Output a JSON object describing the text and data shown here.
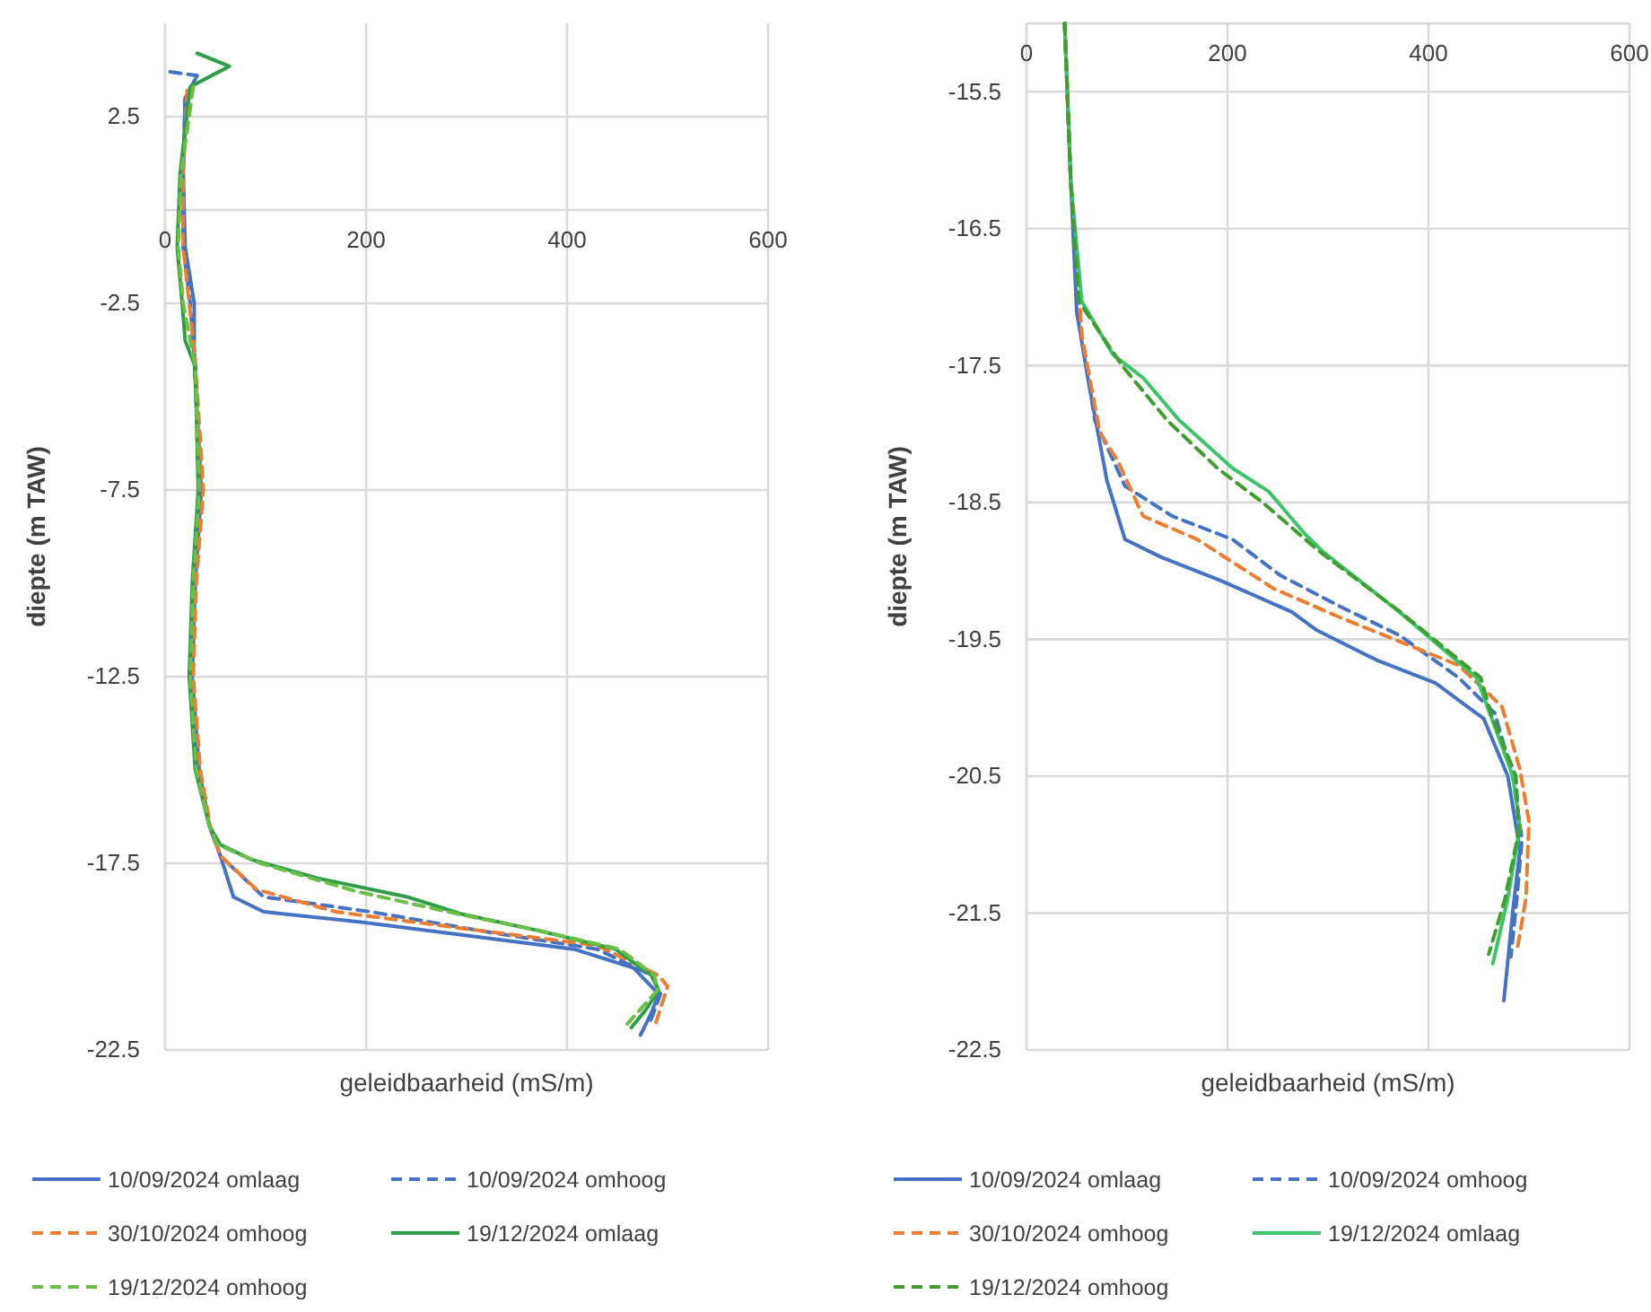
{
  "chart_data": [
    {
      "type": "line",
      "xlabel": "geleidbaarheid (mS/m)",
      "ylabel": "diepte (m TAW)",
      "xlim": [
        0,
        600
      ],
      "xticks": [
        0,
        200,
        400,
        600
      ],
      "ylim": [
        -22.5,
        5
      ],
      "yticks": [
        -22.5,
        -17.5,
        -12.5,
        -7.5,
        -2.5,
        2.5
      ],
      "grid": true,
      "legend": "bottom",
      "series": [
        {
          "name": "10/09/2024 omlaag",
          "color": "#4472c4",
          "line_style": "solid",
          "x": [
            30,
            20,
            18,
            20,
            29,
            29,
            35,
            29,
            26,
            33,
            44,
            55,
            68,
            98,
            193,
            290,
            407,
            466,
            491,
            484,
            473
          ],
          "values": [
            3.5,
            3,
            1,
            -1,
            -2.5,
            -4,
            -7.5,
            -10,
            -12.5,
            -15,
            -16.5,
            -17.3,
            -18.4,
            -18.8,
            -19.07,
            -19.4,
            -19.8,
            -20.3,
            -21,
            -21.5,
            -22.1
          ]
        },
        {
          "name": "10/09/2024 omhoog",
          "color": "#4472c4",
          "line_style": "dashed",
          "x": [
            5,
            32,
            20,
            18,
            18,
            25,
            29,
            36,
            30,
            27,
            34,
            44,
            55,
            98,
            205,
            312,
            430,
            484,
            493,
            482
          ],
          "values": [
            3.7,
            3.6,
            3,
            1,
            -1,
            -2.5,
            -4,
            -7.5,
            -10,
            -12.5,
            -15,
            -16.5,
            -17.3,
            -18.4,
            -18.8,
            -19.3,
            -19.8,
            -20.5,
            -21,
            -21.8
          ]
        },
        {
          "name": "30/10/2024 omhoog",
          "color": "#ed7d31",
          "line_style": "dashed",
          "x": [
            22,
            18,
            18,
            24,
            30,
            38,
            31,
            28,
            35,
            45,
            55,
            91,
            170,
            312,
            430,
            491,
            500,
            488
          ],
          "values": [
            3.2,
            1,
            -1,
            -2.5,
            -4,
            -7.5,
            -10,
            -12.5,
            -15,
            -16.5,
            -17.3,
            -18.2,
            -18.8,
            -19.3,
            -19.7,
            -20.5,
            -20.8,
            -21.8
          ]
        },
        {
          "name": "19/12/2024 omlaag",
          "color": "#2e9e46",
          "line_style": "solid",
          "x": [
            32,
            64,
            25,
            15,
            12,
            17,
            20,
            30,
            33,
            27,
            24,
            30,
            44,
            55,
            86,
            152,
            241,
            295,
            371,
            448,
            484,
            491,
            479,
            464
          ],
          "values": [
            4.2,
            3.85,
            3.3,
            1,
            -1,
            -2.5,
            -3.5,
            -4.2,
            -7.5,
            -10,
            -12.5,
            -15,
            -16.5,
            -17,
            -17.4,
            -17.9,
            -18.4,
            -18.86,
            -19.3,
            -19.8,
            -20.5,
            -20.9,
            -21.4,
            -21.9
          ]
        },
        {
          "name": "19/12/2024 omhoog",
          "color": "#6abf45",
          "line_style": "dashed",
          "x": [
            28,
            16,
            13,
            18,
            30,
            34,
            28,
            25,
            31,
            44,
            52,
            95,
            190,
            290,
            372,
            452,
            487,
            490,
            460
          ],
          "values": [
            3.3,
            1,
            -1,
            -2.5,
            -4.2,
            -7.5,
            -10,
            -12.5,
            -15,
            -16.5,
            -17,
            -17.5,
            -18.25,
            -18.85,
            -19.3,
            -19.8,
            -20.5,
            -20.9,
            -21.8
          ]
        }
      ]
    },
    {
      "type": "line",
      "xlabel": "geleidbaarheid (mS/m)",
      "ylabel": "diepte (m TAW)",
      "xlim": [
        0,
        600
      ],
      "xticks": [
        0,
        200,
        400,
        600
      ],
      "ylim": [
        -22.5,
        -15
      ],
      "yticks": [
        -22.5,
        -21.5,
        -20.5,
        -19.5,
        -18.5,
        -17.5,
        -16.5,
        -15.5
      ],
      "grid": true,
      "legend": "bottom",
      "series": [
        {
          "name": "10/09/2024 omlaag",
          "color": "#4472c4",
          "line_style": "solid",
          "x": [
            38,
            44,
            50,
            62,
            80,
            98,
            134,
            193,
            264,
            288,
            348,
            407,
            455,
            479,
            491,
            484,
            475
          ],
          "values": [
            -15,
            -16.15,
            -17.11,
            -17.63,
            -18.34,
            -18.77,
            -18.9,
            -19.07,
            -19.3,
            -19.43,
            -19.65,
            -19.82,
            -20.08,
            -20.5,
            -21.04,
            -21.48,
            -22.14
          ]
        },
        {
          "name": "10/09/2024 omhoog",
          "color": "#4472c4",
          "line_style": "dashed",
          "x": [
            38,
            44,
            55,
            68,
            98,
            145,
            205,
            252,
            312,
            371,
            430,
            466,
            484,
            493,
            488,
            482
          ],
          "values": [
            -15,
            -16.15,
            -17.28,
            -17.9,
            -18.38,
            -18.6,
            -18.77,
            -19.03,
            -19.26,
            -19.47,
            -19.78,
            -20.04,
            -20.5,
            -20.96,
            -21.39,
            -21.82
          ]
        },
        {
          "name": "30/10/2024 omhoog",
          "color": "#ed7d31",
          "line_style": "dashed",
          "x": [
            38,
            44,
            55,
            73,
            91,
            116,
            170,
            246,
            312,
            430,
            473,
            491,
            500,
            497,
            488
          ],
          "values": [
            -15,
            -16.15,
            -17.28,
            -17.99,
            -18.2,
            -18.6,
            -18.77,
            -19.13,
            -19.34,
            -19.69,
            -19.99,
            -20.45,
            -20.83,
            -21.39,
            -21.78
          ]
        },
        {
          "name": "19/12/2024 omlaag",
          "color": "#3cc46a",
          "line_style": "solid",
          "x": [
            38,
            44,
            55,
            86,
            116,
            152,
            205,
            241,
            277,
            295,
            371,
            448,
            461,
            484,
            491,
            479,
            464
          ],
          "values": [
            -15,
            -16.15,
            -17.03,
            -17.42,
            -17.59,
            -17.9,
            -18.25,
            -18.42,
            -18.73,
            -18.86,
            -19.3,
            -19.78,
            -20.04,
            -20.5,
            -20.87,
            -21.39,
            -21.87
          ]
        },
        {
          "name": "19/12/2024 omhoog",
          "color": "#3f9e2e",
          "line_style": "dashed",
          "x": [
            38,
            44,
            52,
            95,
            140,
            190,
            235,
            290,
            372,
            452,
            462,
            487,
            490,
            476,
            460
          ],
          "values": [
            -15,
            -16.15,
            -17.03,
            -17.5,
            -17.9,
            -18.25,
            -18.5,
            -18.85,
            -19.3,
            -19.78,
            -20.04,
            -20.5,
            -20.9,
            -21.4,
            -21.8
          ]
        }
      ]
    }
  ]
}
